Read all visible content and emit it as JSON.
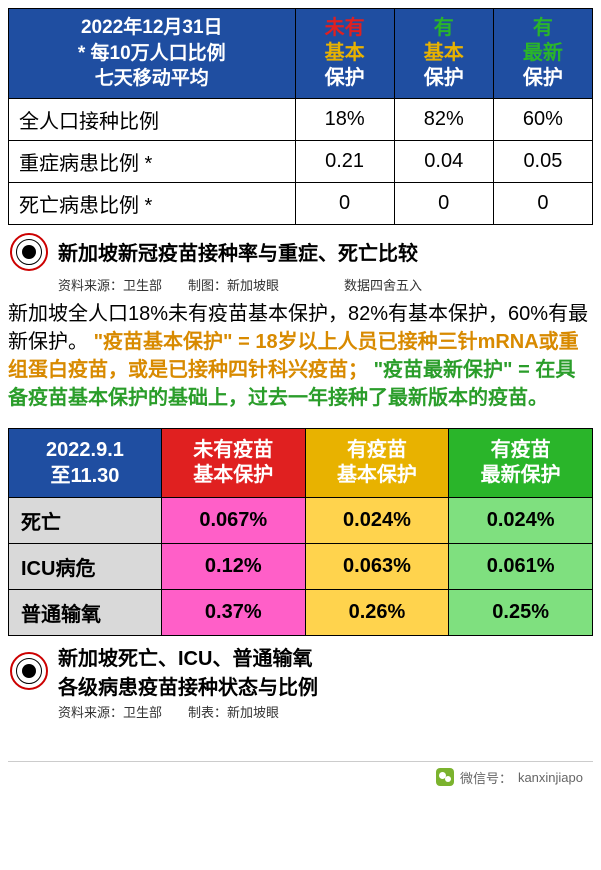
{
  "table1": {
    "header_main": "2022年12月31日\n* 每10万人口比例\n七天移动平均",
    "cols": [
      {
        "l1": "未有",
        "l2": "基本",
        "l3": "保护",
        "c1": "#e02020",
        "c2": "#e8b200"
      },
      {
        "l1": "有",
        "l2": "基本",
        "l3": "保护",
        "c1": "#2ab52a",
        "c2": "#e8b200"
      },
      {
        "l1": "有",
        "l2": "最新",
        "l3": "保护",
        "c1": "#2ab52a",
        "c2": "#2ab52a"
      }
    ],
    "rows": [
      {
        "label": "全人口接种比例",
        "vals": [
          "18%",
          "82%",
          "60%"
        ]
      },
      {
        "label": "重症病患比例 *",
        "vals": [
          "0.21",
          "0.04",
          "0.05"
        ]
      },
      {
        "label": "死亡病患比例 *",
        "vals": [
          "0",
          "0",
          "0"
        ]
      }
    ]
  },
  "caption1": {
    "title": "新加坡新冠疫苗接种率与重症、死亡比较",
    "sub": "资料来源：卫生部　　制图：新加坡眼　　　　　数据四舍五入"
  },
  "para": {
    "t1": "新加坡全人口18%未有疫苗基本保护，82%有基本保护，60%有最新保护。",
    "hl1": "\"疫苗基本保护\" = 18岁以上人员已接种三针mRNA或重组蛋白疫苗，或是已接种四针科兴疫苗；",
    "hl2": "\"疫苗最新保护\" = 在具备疫苗基本保护的基础上，过去一年接种了最新版本的疫苗。"
  },
  "table2": {
    "header_main": "2022.9.1\n至11.30",
    "cols": [
      {
        "l1": "未有疫苗",
        "l2": "基本保护"
      },
      {
        "l1": "有疫苗",
        "l2": "基本保护"
      },
      {
        "l1": "有疫苗",
        "l2": "最新保护"
      }
    ],
    "rows": [
      {
        "label": "死亡",
        "vals": [
          "0.067%",
          "0.024%",
          "0.024%"
        ]
      },
      {
        "label": "ICU病危",
        "vals": [
          "0.12%",
          "0.063%",
          "0.061%"
        ]
      },
      {
        "label": "普通输氧",
        "vals": [
          "0.37%",
          "0.26%",
          "0.25%"
        ]
      }
    ]
  },
  "caption2": {
    "title1": "新加坡死亡、ICU、普通输氧",
    "title2": "各级病患疫苗接种状态与比例",
    "sub": "资料来源：卫生部　　制表：新加坡眼"
  },
  "footer": {
    "label": "微信号：",
    "id": "kanxinjiapo"
  }
}
